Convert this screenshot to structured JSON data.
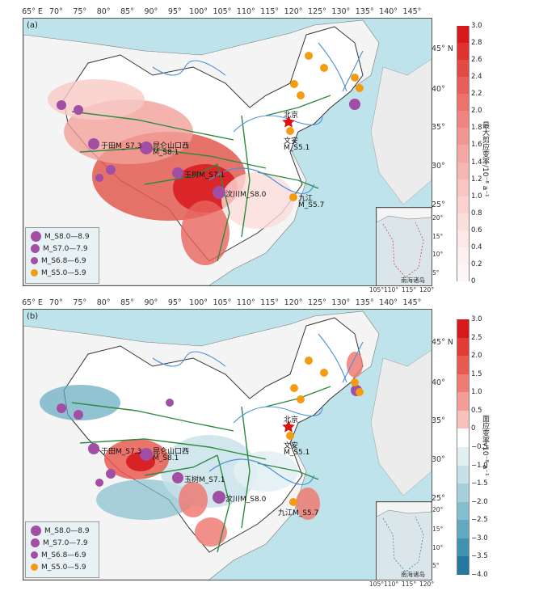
{
  "panels": [
    {
      "id": "a",
      "label": "(a)",
      "lon_ticks": [
        "65° E",
        "70°",
        "75°",
        "80°",
        "85°",
        "90°",
        "95°",
        "100°",
        "105°",
        "110°",
        "115°",
        "120°",
        "125°",
        "130°",
        "135°",
        "140°",
        "145°"
      ],
      "lat_ticks": [
        "45° N",
        "40°",
        "35°",
        "30°",
        "25°"
      ],
      "colorbar": {
        "title": "最大剪应变率/10⁻⁸ a⁻¹",
        "ticks": [
          "3.0",
          "2.8",
          "2.6",
          "2.4",
          "2.2",
          "2.0",
          "1.8",
          "1.6",
          "1.4",
          "1.2",
          "1.0",
          "0.8",
          "0.6",
          "0.4",
          "0.2",
          "0"
        ],
        "colors": [
          "#d7191c",
          "#de3330",
          "#e34a44",
          "#e85e58",
          "#ec726c",
          "#ef8480",
          "#f29692",
          "#f5a7a4",
          "#f7b6b3",
          "#f9c5c2",
          "#fbd2d0",
          "#fcdedc",
          "#fde8e7",
          "#fef1f0",
          "#fff7f7"
        ]
      },
      "inset": {
        "ticks_y": [
          "20°",
          "15°",
          "10°",
          "5°"
        ],
        "ticks_x": [
          "105°",
          "110°",
          "115°",
          "120°"
        ],
        "label": "南海诸岛"
      },
      "cities": [
        {
          "name": "北京"
        },
        {
          "name": "文安"
        },
        {
          "name": "M_S5.1"
        },
        {
          "name": "九江"
        },
        {
          "name": "M_S5.7"
        },
        {
          "name": "汶川M_S8.0"
        },
        {
          "name": "于田M_S7.3"
        },
        {
          "name": "昆仑山口西"
        },
        {
          "name": "M_S8.1"
        },
        {
          "name": "玉树M_S7.1"
        }
      ]
    },
    {
      "id": "b",
      "label": "(b)",
      "lon_ticks": [
        "65° E",
        "70°",
        "75°",
        "80°",
        "85°",
        "90°",
        "95°",
        "100°",
        "105°",
        "110°",
        "115°",
        "120°",
        "125°",
        "130°",
        "135°",
        "140°",
        "145°"
      ],
      "lat_ticks": [
        "45° N",
        "40°",
        "35°",
        "30°",
        "25°"
      ],
      "colorbar": {
        "title": "面应变率/10⁻⁸ a⁻¹",
        "ticks": [
          "3.0",
          "2.5",
          "2.0",
          "1.5",
          "1.0",
          "0.5",
          "0",
          "−0.5",
          "−1.0",
          "−1.5",
          "−2.0",
          "−2.5",
          "−3.0",
          "−3.5",
          "−4.0"
        ],
        "colors": [
          "#d7191c",
          "#e03b35",
          "#e85a52",
          "#ef7b73",
          "#f49d97",
          "#fac0bc",
          "#ffffff",
          "#e2eff3",
          "#c6e1e8",
          "#a6d0dc",
          "#85bfcf",
          "#62aac1",
          "#3f93b0",
          "#2479a0"
        ]
      },
      "inset": {
        "ticks_y": [
          "20°",
          "15°",
          "10°",
          "5°"
        ],
        "ticks_x": [
          "105°",
          "110°",
          "115°",
          "120°"
        ],
        "label": "南海诸岛"
      },
      "cities": [
        {
          "name": "北京"
        },
        {
          "name": "文安"
        },
        {
          "name": "M_S5.1"
        },
        {
          "name": "九江M_S5.7"
        },
        {
          "name": "汶川M_S8.0"
        },
        {
          "name": "于田M_S7.3"
        },
        {
          "name": "昆仑山口西"
        },
        {
          "name": "M_S8.1"
        },
        {
          "name": "玉树M_S7.1"
        }
      ]
    }
  ],
  "legend": [
    {
      "label": "M_S8.0—8.9",
      "color": "#a24ea4"
    },
    {
      "label": "M_S7.0—7.9",
      "color": "#a24ea4"
    },
    {
      "label": "M_S6.8—6.9",
      "color": "#a24ea4"
    },
    {
      "label": "M_S5.0—5.9",
      "color": "#f39c12"
    }
  ],
  "colors": {
    "ocean": "#bfe3ea",
    "land": "#f5f5f5",
    "fault": "#2e8b3e",
    "river": "#4a90d9",
    "border": "#555555"
  }
}
